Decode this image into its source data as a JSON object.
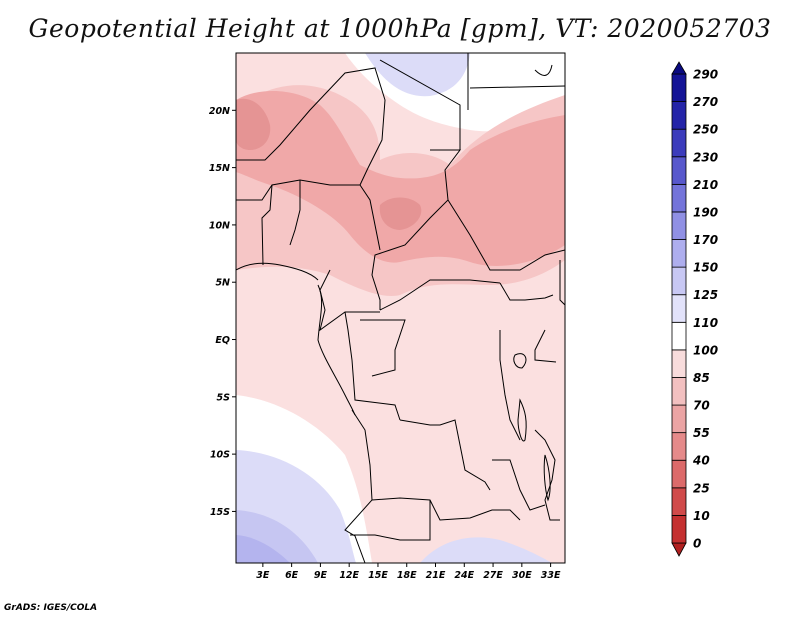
{
  "title": "Geopotential Height at 1000hPa [gpm], VT: 2020052703",
  "credit": "GrADS: IGES/COLA",
  "map": {
    "lat_labels": [
      "20N",
      "15N",
      "10N",
      "5N",
      "EQ",
      "5S",
      "10S",
      "15S"
    ],
    "lon_labels": [
      "3E",
      "6E",
      "9E",
      "12E",
      "15E",
      "18E",
      "21E",
      "24E",
      "27E",
      "30E",
      "33E"
    ],
    "lat_values": [
      20,
      15,
      10,
      5,
      0,
      -5,
      -10,
      -15
    ],
    "lon_values": [
      3,
      6,
      9,
      12,
      15,
      18,
      21,
      24,
      27,
      30,
      33
    ],
    "lon_range": [
      0.2,
      34.5
    ],
    "lat_range": [
      -19.5,
      25
    ]
  },
  "colorbar": {
    "levels": [
      "0",
      "10",
      "25",
      "40",
      "55",
      "70",
      "85",
      "100",
      "110",
      "125",
      "150",
      "170",
      "190",
      "210",
      "230",
      "250",
      "270",
      "290"
    ],
    "colors": [
      "#b02020",
      "#c43030",
      "#d04a4a",
      "#dc6a6a",
      "#e58a8a",
      "#eba4a4",
      "#f2c0c0",
      "#f8dcdc",
      "#ffffff",
      "#e2e2fa",
      "#c8c8f4",
      "#aeaeee",
      "#9090e4",
      "#7474da",
      "#5858cc",
      "#3c3cbc",
      "#2424a8",
      "#141496",
      "#0a0a80"
    ]
  },
  "colors": {
    "pink_light": "#fbe0e0",
    "pink_mid": "#f6c6c6",
    "pink_dark": "#f0a8a8",
    "pink_darker": "#e59494",
    "white": "#ffffff",
    "blue_light": "#dcdcf8",
    "blue_mid": "#c6c6f2",
    "blue_dark": "#b4b4ee"
  }
}
